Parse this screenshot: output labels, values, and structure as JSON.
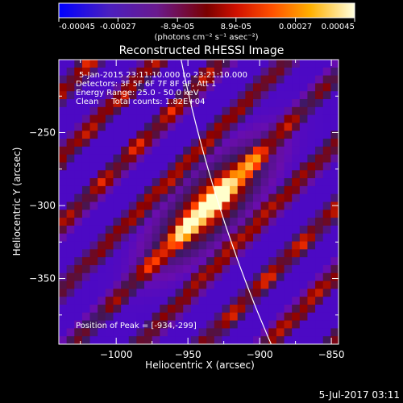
{
  "colorbar": {
    "tick_labels": [
      "-0.00045",
      "-0.00027",
      "-8.9e-05",
      "8.9e-05",
      "0.00027",
      "0.00045"
    ],
    "min": -0.00045,
    "max": 0.00045,
    "unit_label": "(photons cm⁻² s⁻¹ asec⁻²)"
  },
  "chart_data": {
    "type": "heatmap",
    "title": "Reconstructed RHESSI Image",
    "xlabel": "Heliocentric X (arcsec)",
    "ylabel": "Heliocentric Y (arcsec)",
    "xlim": [
      -1040,
      -845
    ],
    "ylim": [
      -395,
      -200
    ],
    "x_ticks": [
      -1000,
      -950,
      -900,
      -850
    ],
    "y_ticks": [
      -250,
      -300,
      -350
    ],
    "x_tick_labels": [
      "−1000",
      "−950",
      "−900",
      "−850"
    ],
    "y_tick_labels": [
      "−250",
      "−300",
      "−350"
    ],
    "peak": [
      -934,
      -299
    ],
    "limb_color": "#ffffff",
    "colormap": [
      "#0000ff",
      "#6a0dad",
      "#3b1960",
      "#8b0000",
      "#ff3300",
      "#ff9900",
      "#ffffcc"
    ],
    "annotations": [
      "5-Jan-2015 23:11:10.000 to 23:21:10.000",
      "Detectors: 3F 5F 6F 7F 8F 9F, Att 1",
      "Energy Range: 25.0 - 50.0 keV",
      "Clean     Total counts: 1.82E+04"
    ],
    "peak_label": "Position of Peak = [-934,-299]"
  },
  "timestamp": "5-Jul-2017 03:11"
}
